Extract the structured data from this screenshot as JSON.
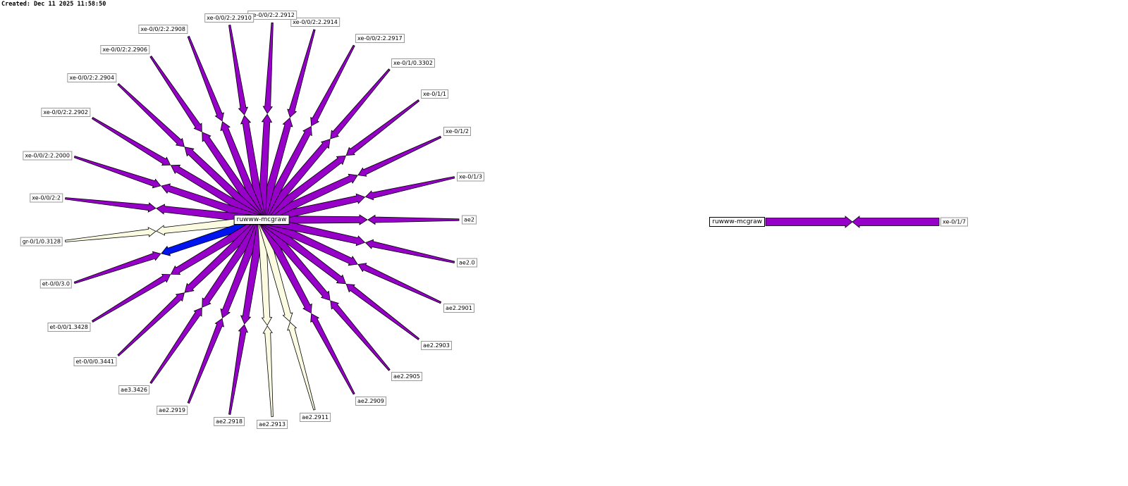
{
  "header": {
    "created": "Created: Dec 11 2025 11:58:50"
  },
  "palette": {
    "purple": "#9600C8",
    "blue": "#0014F0",
    "cream": "#FBFBE1",
    "stroke": "#000000",
    "label_bg": "#FFFFFF",
    "label_border": "#999999",
    "node_border": "#000000"
  },
  "map": {
    "hub": {
      "label": "ruwww-mcgraw"
    },
    "links": [
      {
        "label": "ae2",
        "in": "purple",
        "out": "purple"
      },
      {
        "label": "xe-0/1/3",
        "in": "purple",
        "out": "purple"
      },
      {
        "label": "xe-0/1/2",
        "in": "purple",
        "out": "purple"
      },
      {
        "label": "xe-0/1/1",
        "in": "purple",
        "out": "purple"
      },
      {
        "label": "xe-0/1/0.3302",
        "in": "purple",
        "out": "purple"
      },
      {
        "label": "xe-0/0/2:2.2917",
        "in": "purple",
        "out": "purple"
      },
      {
        "label": "xe-0/0/2:2.2914",
        "in": "purple",
        "out": "purple"
      },
      {
        "label": "xe-0/0/2:2.2912",
        "in": "purple",
        "out": "purple"
      },
      {
        "label": "xe-0/0/2:2.2910",
        "in": "purple",
        "out": "purple"
      },
      {
        "label": "xe-0/0/2:2.2908",
        "in": "purple",
        "out": "purple"
      },
      {
        "label": "xe-0/0/2:2.2906",
        "in": "purple",
        "out": "purple"
      },
      {
        "label": "xe-0/0/2:2.2904",
        "in": "purple",
        "out": "purple"
      },
      {
        "label": "xe-0/0/2:2.2902",
        "in": "purple",
        "out": "purple"
      },
      {
        "label": "xe-0/0/2:2.2000",
        "in": "purple",
        "out": "purple"
      },
      {
        "label": "xe-0/0/2:2",
        "in": "purple",
        "out": "purple"
      },
      {
        "label": "gr-0/1/0.3128",
        "in": "cream",
        "out": "cream"
      },
      {
        "label": "et-0/0/3.0",
        "in": "blue",
        "out": "purple"
      },
      {
        "label": "et-0/0/1.3428",
        "in": "purple",
        "out": "purple"
      },
      {
        "label": "et-0/0/0.3441",
        "in": "purple",
        "out": "purple"
      },
      {
        "label": "ae3.3426",
        "in": "purple",
        "out": "purple"
      },
      {
        "label": "ae2.2919",
        "in": "purple",
        "out": "purple"
      },
      {
        "label": "ae2.2918",
        "in": "purple",
        "out": "purple"
      },
      {
        "label": "ae2.2913",
        "in": "cream",
        "out": "cream"
      },
      {
        "label": "ae2.2911",
        "in": "cream",
        "out": "cream"
      },
      {
        "label": "ae2.2909",
        "in": "purple",
        "out": "purple"
      },
      {
        "label": "ae2.2905",
        "in": "purple",
        "out": "purple"
      },
      {
        "label": "ae2.2903",
        "in": "purple",
        "out": "purple"
      },
      {
        "label": "ae2.2901",
        "in": "purple",
        "out": "purple"
      },
      {
        "label": "ae2.0",
        "in": "purple",
        "out": "purple"
      }
    ]
  },
  "detail": {
    "node": {
      "label": "ruwww-mcgraw"
    },
    "link": {
      "label": "xe-0/1/7",
      "in": "purple",
      "out": "purple"
    }
  }
}
